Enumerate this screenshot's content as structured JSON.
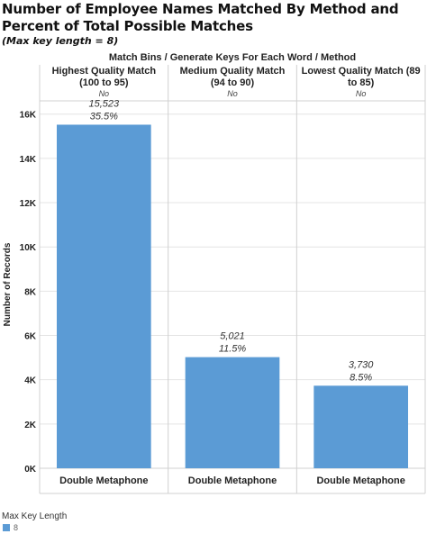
{
  "title": "Number of Employee Names Matched By Method and Percent of Total Possible Matches",
  "subtitle": "(Max key length = 8)",
  "colors": {
    "bar": "#5b9bd5",
    "grid": "#e4e4e4",
    "border": "#d0d0d0"
  },
  "chart_data": {
    "type": "bar",
    "header_title": "Match Bins  /  Generate Keys For Each Word  /  Method",
    "columns": [
      {
        "bin": "Highest Quality Match (100 to 95)",
        "generate_keys": "No",
        "method": "Double Metaphone",
        "value": 15523,
        "value_label": "15,523",
        "percent_label": "35.5%"
      },
      {
        "bin": "Medium Quality Match (94 to 90)",
        "generate_keys": "No",
        "method": "Double Metaphone",
        "value": 5021,
        "value_label": "5,021",
        "percent_label": "11.5%"
      },
      {
        "bin": "Lowest Quality Match (89 to 85)",
        "generate_keys": "No",
        "method": "Double Metaphone",
        "value": 3730,
        "value_label": "3,730",
        "percent_label": "8.5%"
      }
    ],
    "ylabel": "Number of Records",
    "yticks": [
      0,
      2000,
      4000,
      6000,
      8000,
      10000,
      12000,
      14000,
      16000
    ],
    "ytick_labels": [
      "0K",
      "2K",
      "4K",
      "6K",
      "8K",
      "10K",
      "12K",
      "14K",
      "16K"
    ],
    "ylim": [
      0,
      16600
    ],
    "grid": true,
    "legend": {
      "title": "Max Key Length",
      "items": [
        {
          "label": "8",
          "color": "#5b9bd5"
        }
      ]
    }
  }
}
